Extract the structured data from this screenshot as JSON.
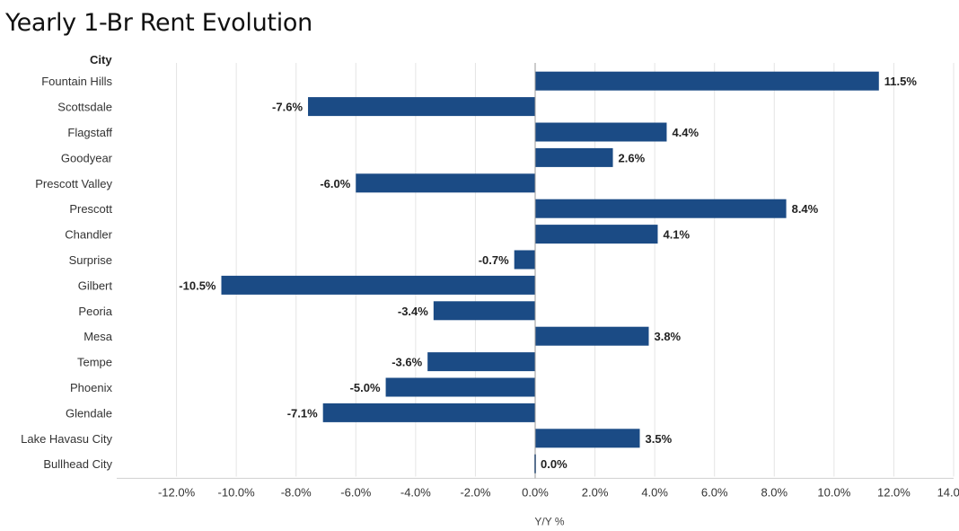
{
  "chart_data": {
    "type": "bar",
    "orientation": "horizontal",
    "title": "Yearly 1-Br Rent Evolution",
    "category_header": "City",
    "xlabel": "Y/Y %",
    "ylabel": "",
    "xlim": [
      -14,
      14
    ],
    "grid": true,
    "bar_color": "#1b4b85",
    "categories": [
      "Fountain Hills",
      "Scottsdale",
      "Flagstaff",
      "Goodyear",
      "Prescott Valley",
      "Prescott",
      "Chandler",
      "Surprise",
      "Gilbert",
      "Peoria",
      "Mesa",
      "Tempe",
      "Phoenix",
      "Glendale",
      "Lake Havasu City",
      "Bullhead City"
    ],
    "values": [
      11.5,
      -7.6,
      4.4,
      2.6,
      -6.0,
      8.4,
      4.1,
      -0.7,
      -10.5,
      -3.4,
      3.8,
      -3.6,
      -5.0,
      -7.1,
      3.5,
      0.0
    ],
    "value_labels": [
      "11.5%",
      "-7.6%",
      "4.4%",
      "2.6%",
      "-6.0%",
      "8.4%",
      "4.1%",
      "-0.7%",
      "-10.5%",
      "-3.4%",
      "3.8%",
      "-3.6%",
      "-5.0%",
      "-7.1%",
      "3.5%",
      "0.0%"
    ],
    "x_ticks": [
      -12,
      -10,
      -8,
      -6,
      -4,
      -2,
      0,
      2,
      4,
      6,
      8,
      10,
      12,
      14
    ],
    "x_tick_labels": [
      "-12.0%",
      "-10.0%",
      "-8.0%",
      "-6.0%",
      "-4.0%",
      "-2.0%",
      "0.0%",
      "2.0%",
      "4.0%",
      "6.0%",
      "8.0%",
      "10.0%",
      "12.0%",
      "14.0%"
    ]
  }
}
